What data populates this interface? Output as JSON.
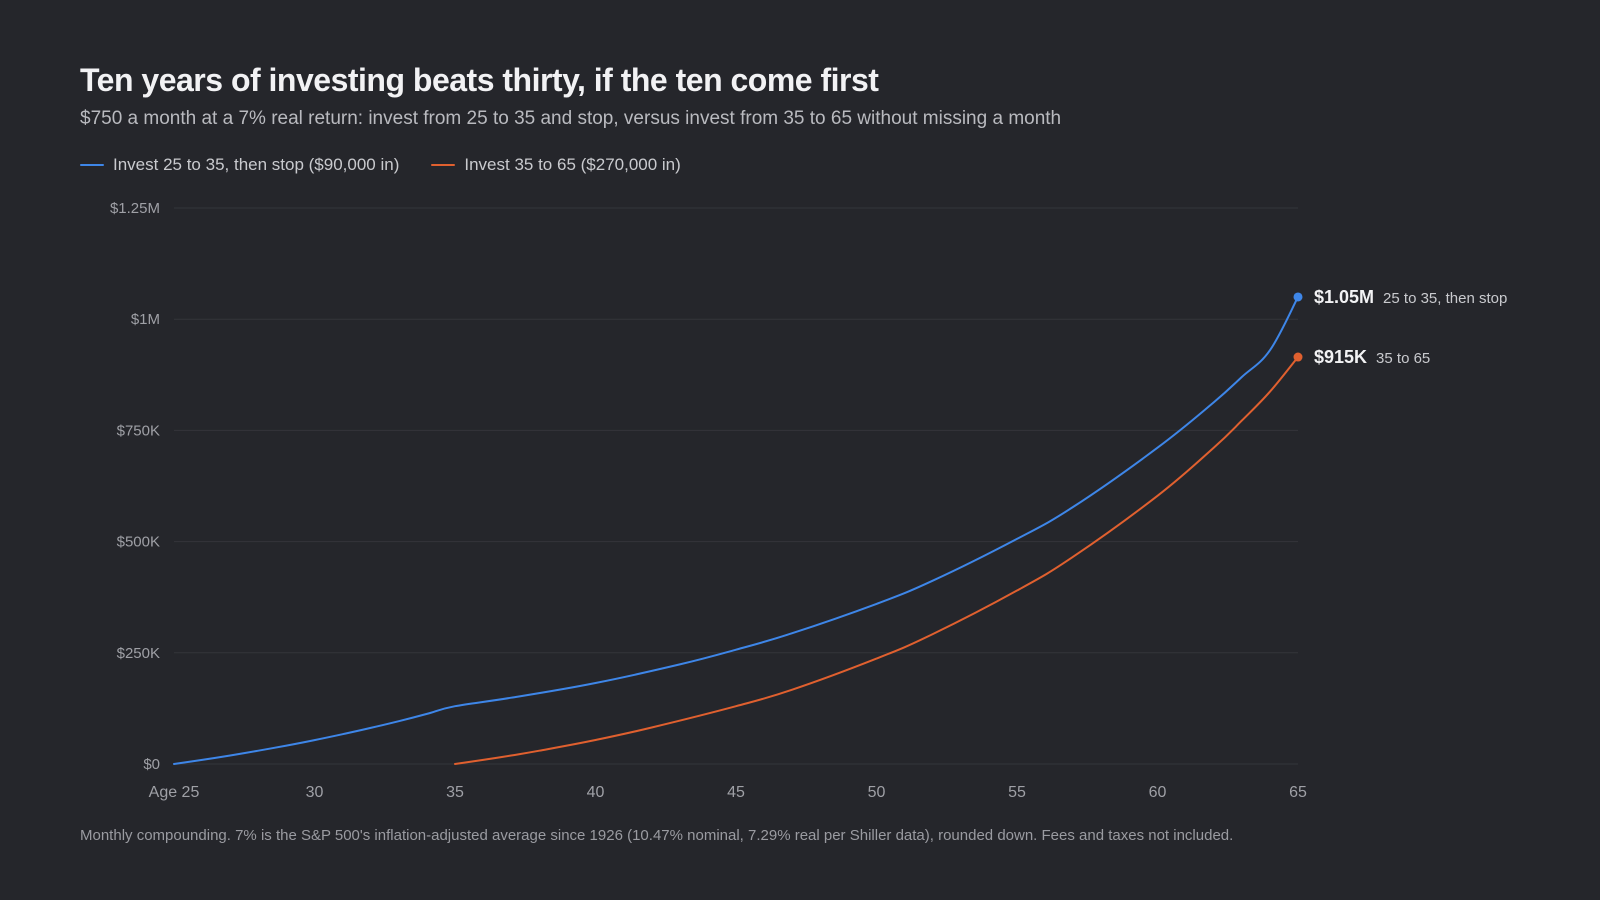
{
  "header": {
    "title": "Ten years of investing beats thirty, if the ten come first",
    "subtitle": "$750 a month at a 7% real return: invest from 25 to 35 and stop, versus invest from 35 to 65 without missing a month"
  },
  "colors": {
    "background": "#25262b",
    "early": "#3e86e8",
    "late": "#e0602f",
    "grid": "#34353b",
    "tick_text": "#9fa0a6"
  },
  "chart_data": {
    "type": "line",
    "title": "Ten years of investing beats thirty, if the ten come first",
    "subtitle": "$750 a month at a 7% real return: invest from 25 to 35 and stop, versus invest from 35 to 65 without missing a month",
    "xlabel": "",
    "ylabel": "",
    "xlim": [
      25,
      65
    ],
    "ylim": [
      0,
      1250000
    ],
    "grid": true,
    "legend_position": "top-left",
    "x_ticks": [
      {
        "value": 25,
        "label": "Age 25"
      },
      {
        "value": 30,
        "label": "30"
      },
      {
        "value": 35,
        "label": "35"
      },
      {
        "value": 40,
        "label": "40"
      },
      {
        "value": 45,
        "label": "45"
      },
      {
        "value": 50,
        "label": "50"
      },
      {
        "value": 55,
        "label": "55"
      },
      {
        "value": 60,
        "label": "60"
      },
      {
        "value": 65,
        "label": "65"
      }
    ],
    "y_ticks": [
      {
        "value": 0,
        "label": "$0"
      },
      {
        "value": 250000,
        "label": "$250K"
      },
      {
        "value": 500000,
        "label": "$500K"
      },
      {
        "value": 750000,
        "label": "$750K"
      },
      {
        "value": 1000000,
        "label": "$1M"
      },
      {
        "value": 1250000,
        "label": "$1.25M"
      }
    ],
    "series": [
      {
        "key": "early",
        "name": "Invest 25 to 35, then stop ($90,000 in)",
        "color": "#3e86e8",
        "end_value_label": "$1.05M",
        "end_label": "25 to 35, then stop",
        "x": [
          25,
          26,
          27,
          28,
          29,
          30,
          31,
          32,
          33,
          34,
          35,
          37,
          40,
          43,
          45,
          47,
          50,
          52,
          55,
          57,
          60,
          62,
          63,
          64,
          65
        ],
        "y": [
          0,
          9300,
          19200,
          29900,
          41400,
          53700,
          66900,
          81100,
          96300,
          112600,
          130000,
          149000,
          182000,
          224000,
          257000,
          294000,
          360000,
          412000,
          506000,
          578000,
          711000,
          813000,
          870000,
          930000,
          1050000
        ]
      },
      {
        "key": "late",
        "name": "Invest 35 to 65 ($270,000 in)",
        "color": "#e0602f",
        "end_value_label": "$915K",
        "end_label": "35 to 65",
        "x": [
          35,
          36,
          37,
          38,
          40,
          42,
          45,
          47,
          50,
          52,
          55,
          57,
          60,
          62,
          63,
          64,
          65
        ],
        "y": [
          0,
          9300,
          19200,
          29900,
          54000,
          82000,
          130000,
          167000,
          237000,
          292000,
          390000,
          466000,
          603000,
          711000,
          772000,
          837000,
          915000
        ]
      }
    ]
  },
  "footnote": "Monthly compounding. 7% is the S&P 500's inflation-adjusted average since 1926 (10.47% nominal, 7.29% real per Shiller data), rounded down. Fees and taxes not included."
}
